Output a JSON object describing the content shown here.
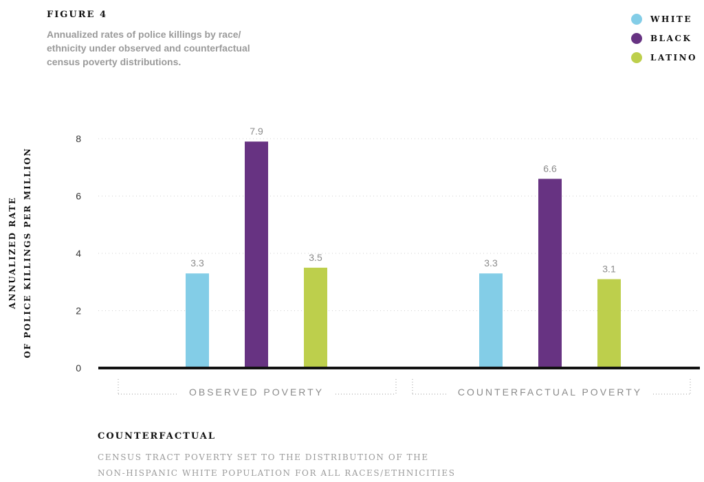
{
  "figure": {
    "label": "FIGURE 4",
    "subtitle": "Annualized rates of police killings by race/ ethnicity under observed and counterfactual census poverty distributions."
  },
  "legend": [
    {
      "label": "WHITE",
      "color": "#83cde7"
    },
    {
      "label": "BLACK",
      "color": "#673382"
    },
    {
      "label": "LATINO",
      "color": "#bdcf4c"
    }
  ],
  "footnote": {
    "title": "COUNTERFACTUAL",
    "text_line1": "CENSUS TRACT POVERTY SET TO THE DISTRIBUTION OF THE",
    "text_line2": "NON-HISPANIC WHITE POPULATION FOR ALL RACES/ETHNICITIES"
  },
  "chart_data": {
    "type": "bar",
    "categories": [
      "OBSERVED POVERTY",
      "COUNTERFACTUAL POVERTY"
    ],
    "series": [
      {
        "name": "WHITE",
        "values": [
          3.3,
          3.3
        ],
        "color": "#83cde7"
      },
      {
        "name": "BLACK",
        "values": [
          7.9,
          6.6
        ],
        "color": "#673382"
      },
      {
        "name": "LATINO",
        "values": [
          3.5,
          3.1
        ],
        "color": "#bdcf4c"
      }
    ],
    "ylabel_line1": "ANNUALIZED RATE",
    "ylabel_line2": "OF POLICE KILLINGS PER MILLION",
    "yticks": [
      0,
      2,
      4,
      6,
      8
    ],
    "ylim": [
      0,
      8.5
    ],
    "grid": "dotted",
    "legend_position": "top-right"
  }
}
